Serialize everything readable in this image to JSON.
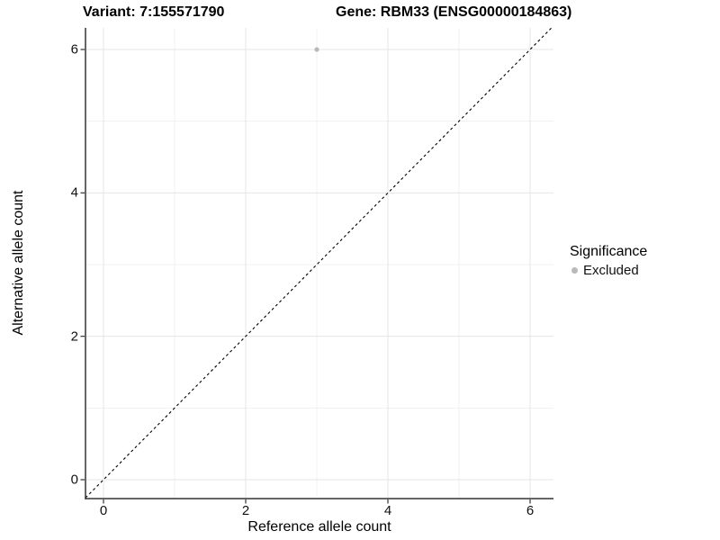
{
  "figure": {
    "title_left": "Variant: 7:155571790",
    "title_right": "Gene: RBM33 (ENSG00000184863)"
  },
  "axes": {
    "x_label": "Reference allele count",
    "y_label": "Alternative allele count"
  },
  "legend": {
    "title": "Significance",
    "entries": [
      {
        "label": "Excluded",
        "color": "#b9b9b9",
        "shape": "circle"
      }
    ]
  },
  "chart_data": {
    "type": "scatter",
    "title": "Variant: 7:155571790   Gene: RBM33 (ENSG00000184863)",
    "xlabel": "Reference allele count",
    "ylabel": "Alternative allele count",
    "xlim": [
      -0.25,
      6.33
    ],
    "ylim": [
      -0.26,
      6.3
    ],
    "x_ticks": [
      0,
      2,
      4,
      6
    ],
    "y_ticks": [
      0,
      2,
      4,
      6
    ],
    "x_minor_ticks": [
      1,
      3,
      5
    ],
    "y_minor_ticks": [
      1,
      3,
      5
    ],
    "grid": true,
    "legend_position": "right",
    "series": [
      {
        "name": "Excluded",
        "color": "#b9b9b9",
        "points": [
          {
            "x": 3,
            "y": 6
          }
        ]
      }
    ],
    "reference_line": {
      "equation": "y = x",
      "style": "dashed",
      "color": "#000000"
    }
  },
  "colors": {
    "background": "#ffffff",
    "grid_major": "#e4e4e4",
    "grid_minor": "#f1f1f1",
    "axis_line": "#333333",
    "text": "#000000"
  }
}
